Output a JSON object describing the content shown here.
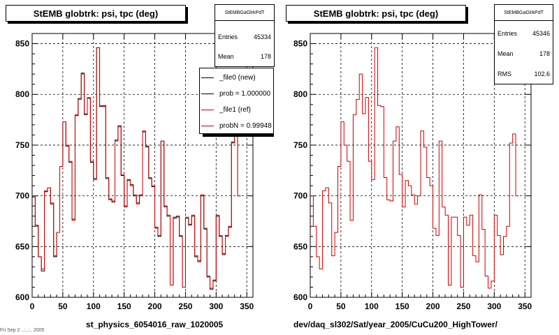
{
  "panels": [
    {
      "title": "StEMB globtrk: psi, tpc (deg)",
      "stats": {
        "header": "StEMBGaGlrkPdT",
        "rows": [
          {
            "label": "Entries",
            "value": "45334"
          },
          {
            "label": "Mean",
            "value": "178"
          }
        ]
      },
      "footer": "st_physics_6054016_raw_1020005"
    },
    {
      "title": "StEMB globtrk: psi, tpc (deg)",
      "stats": {
        "header": "StEMBGaGlrkPdT",
        "rows": [
          {
            "label": "Entries",
            "value": "45346"
          },
          {
            "label": "Mean",
            "value": "178"
          },
          {
            "label": "RMS",
            "value": "102.6"
          }
        ]
      },
      "footer": "dev/daq_sl302/Sat/year_2005/CuCu200_HighTower/"
    }
  ],
  "legend": {
    "entries": [
      {
        "label": "_file0 (new)",
        "color": "#000000"
      },
      {
        "label": "prob = 1.000000",
        "color": "#000000"
      },
      {
        "label": "_file1 (ref)",
        "color": "#cc0000"
      },
      {
        "label": "probN = 0.99948",
        "color": "#cc0000"
      }
    ]
  },
  "timestamp": "Fri Sep 2 ..:..:.. 2005",
  "chart_data": [
    {
      "type": "histogram",
      "title": "StEMB globtrk: psi, tpc (deg)",
      "xlabel": "",
      "xlim": [
        0,
        360
      ],
      "ylim": [
        600,
        860
      ],
      "xticks": [
        0,
        50,
        100,
        150,
        200,
        250,
        300,
        350
      ],
      "yticks": [
        600,
        650,
        700,
        750,
        800,
        850
      ],
      "bin_width": 5,
      "grid": true,
      "series": [
        {
          "name": "_file0 (new)",
          "color": "#000000",
          "values": [
            699,
            671,
            640,
            626,
            704,
            708,
            692,
            640,
            664,
            729,
            773,
            749,
            733,
            677,
            779,
            796,
            821,
            780,
            796,
            733,
            717,
            846,
            788,
            789,
            717,
            697,
            694,
            755,
            769,
            720,
            690,
            716,
            711,
            700,
            693,
            701,
            763,
            749,
            717,
            709,
            669,
            660,
            754,
            690,
            680,
            612,
            678,
            680,
            660,
            610,
            678,
            672,
            680,
            640,
            636,
            700,
            668,
            620,
            608,
            617,
            680,
            660,
            643,
            661,
            669,
            753,
            760,
            700
          ]
        },
        {
          "name": "_file1 (ref)",
          "color": "#cc0000",
          "values": [
            700,
            670,
            640,
            628,
            705,
            708,
            693,
            641,
            664,
            729,
            773,
            750,
            734,
            676,
            780,
            795,
            820,
            781,
            797,
            734,
            716,
            846,
            789,
            788,
            718,
            696,
            695,
            754,
            768,
            721,
            689,
            715,
            710,
            701,
            692,
            700,
            764,
            748,
            718,
            710,
            668,
            661,
            754,
            689,
            681,
            612,
            679,
            679,
            661,
            610,
            679,
            671,
            681,
            641,
            635,
            701,
            667,
            621,
            609,
            616,
            681,
            661,
            642,
            660,
            670,
            752,
            761,
            700
          ]
        }
      ]
    },
    {
      "type": "histogram",
      "title": "StEMB globtrk: psi, tpc (deg)",
      "xlabel": "",
      "xlim": [
        0,
        360
      ],
      "ylim": [
        600,
        860
      ],
      "xticks": [
        0,
        50,
        100,
        150,
        200,
        250,
        300,
        350
      ],
      "yticks": [
        600,
        650,
        700,
        750,
        800,
        850
      ],
      "bin_width": 5,
      "grid": true,
      "series": [
        {
          "name": "",
          "color": "#cc0000",
          "values": [
            700,
            670,
            640,
            628,
            705,
            708,
            693,
            641,
            664,
            729,
            773,
            750,
            734,
            676,
            780,
            795,
            820,
            781,
            797,
            734,
            716,
            846,
            789,
            788,
            718,
            696,
            695,
            754,
            768,
            721,
            689,
            715,
            710,
            701,
            692,
            700,
            764,
            748,
            718,
            710,
            668,
            661,
            754,
            689,
            681,
            612,
            679,
            679,
            661,
            610,
            679,
            671,
            681,
            641,
            635,
            701,
            667,
            621,
            609,
            616,
            681,
            661,
            642,
            660,
            670,
            752,
            761,
            700
          ]
        }
      ]
    }
  ]
}
